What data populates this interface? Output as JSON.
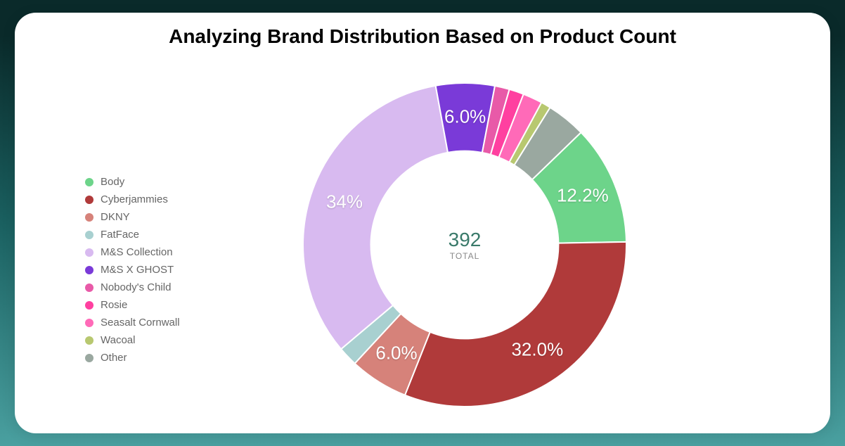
{
  "title": "Analyzing Brand Distribution Based on Product Count",
  "chart": {
    "type": "donut",
    "total_value": "392",
    "total_label": "TOTAL",
    "background_color": "#ffffff",
    "inner_radius_ratio": 0.58,
    "slices": [
      {
        "name": "Body",
        "value": 12.2,
        "color": "#6dd48a",
        "label": "12.2%",
        "show_label": true
      },
      {
        "name": "Cyberjammies",
        "value": 32.0,
        "color": "#b03a3a",
        "label": "32.0%",
        "show_label": true
      },
      {
        "name": "DKNY",
        "value": 6.0,
        "color": "#d6827a",
        "label": "6.0%",
        "show_label": true
      },
      {
        "name": "FatFace",
        "value": 2.0,
        "color": "#a8d0d0",
        "label": "",
        "show_label": false
      },
      {
        "name": "M&S Collection",
        "value": 34.0,
        "color": "#d8baf0",
        "label": "34%",
        "show_label": true
      },
      {
        "name": "M&S X GHOST",
        "value": 6.0,
        "color": "#7a3ad8",
        "label": "6.0%",
        "show_label": true
      },
      {
        "name": "Nobody's Child",
        "value": 1.5,
        "color": "#e85aa8",
        "label": "",
        "show_label": false
      },
      {
        "name": "Rosie",
        "value": 1.5,
        "color": "#ff40a0",
        "label": "",
        "show_label": false
      },
      {
        "name": "Seasalt Cornwall",
        "value": 2.0,
        "color": "#ff6ab8",
        "label": "",
        "show_label": false
      },
      {
        "name": "Wacoal",
        "value": 1.0,
        "color": "#b8c870",
        "label": "",
        "show_label": false
      },
      {
        "name": "Other",
        "value": 4.0,
        "color": "#9aa8a0",
        "label": "",
        "show_label": false
      }
    ],
    "legend_text_color": "#666666",
    "slice_label_color": "#ffffff",
    "slice_label_fontsize": 26,
    "start_angle_deg": -44
  }
}
